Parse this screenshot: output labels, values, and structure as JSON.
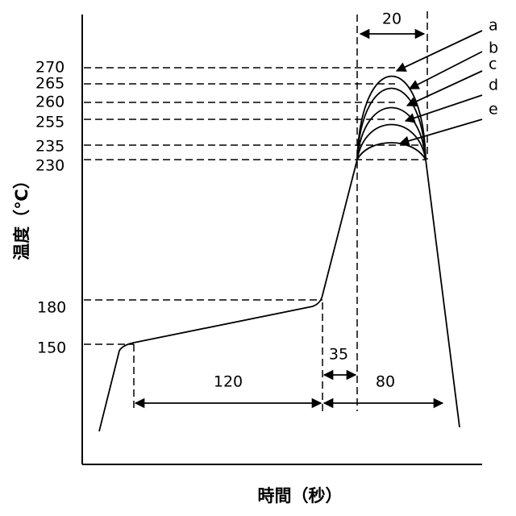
{
  "axes": {
    "y_title": "温度（℃）",
    "x_title": "時間（秒）"
  },
  "y_ticks": [
    "270",
    "265",
    "260",
    "255",
    "235",
    "230",
    "180",
    "150"
  ],
  "durations": {
    "preheat": "120",
    "ramp": "35",
    "above_230": "80",
    "peak_window": "20"
  },
  "curves": [
    "a",
    "b",
    "c",
    "d",
    "e"
  ],
  "peak_temperatures": {
    "a": 270,
    "b": 265,
    "c": 260,
    "d": 255,
    "e": 235
  }
}
